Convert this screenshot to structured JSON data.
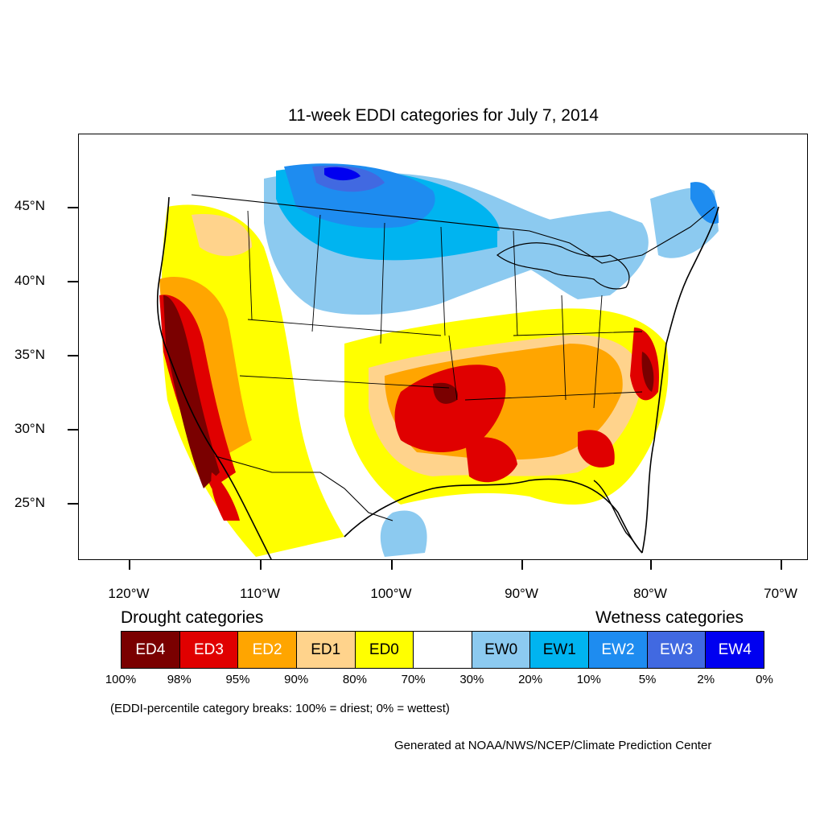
{
  "title": "11-week EDDI categories for July 7, 2014",
  "lat_labels": [
    "45°N",
    "40°N",
    "35°N",
    "30°N",
    "25°N"
  ],
  "lon_labels": [
    "120°W",
    "110°W",
    "100°W",
    "90°W",
    "80°W",
    "70°W"
  ],
  "legend": {
    "drought_title": "Drought categories",
    "wetness_title": "Wetness categories",
    "categories": [
      {
        "label": "ED4",
        "color": "#7a0000",
        "text_color": "#ffffff"
      },
      {
        "label": "ED3",
        "color": "#e00000",
        "text_color": "#ffffff"
      },
      {
        "label": "ED2",
        "color": "#ffa500",
        "text_color": "#ffffff"
      },
      {
        "label": "ED1",
        "color": "#ffd38c",
        "text_color": "#000000"
      },
      {
        "label": "ED0",
        "color": "#ffff00",
        "text_color": "#000000"
      },
      {
        "label": "",
        "color": "#ffffff",
        "text_color": "#000000"
      },
      {
        "label": "EW0",
        "color": "#8ccaf0",
        "text_color": "#000000"
      },
      {
        "label": "EW1",
        "color": "#00b4f0",
        "text_color": "#000000"
      },
      {
        "label": "EW2",
        "color": "#1e8cf0",
        "text_color": "#ffffff"
      },
      {
        "label": "EW3",
        "color": "#4169e1",
        "text_color": "#ffffff"
      },
      {
        "label": "EW4",
        "color": "#0000f0",
        "text_color": "#ffffff"
      }
    ],
    "breaks": [
      "100%",
      "98%",
      "95%",
      "90%",
      "80%",
      "70%",
      "30%",
      "20%",
      "10%",
      "5%",
      "2%",
      "0%"
    ]
  },
  "note": "(EDDI-percentile category breaks: 100% = driest; 0% = wettest)",
  "credit": "Generated at NOAA/NWS/NCEP/Climate Prediction Center"
}
